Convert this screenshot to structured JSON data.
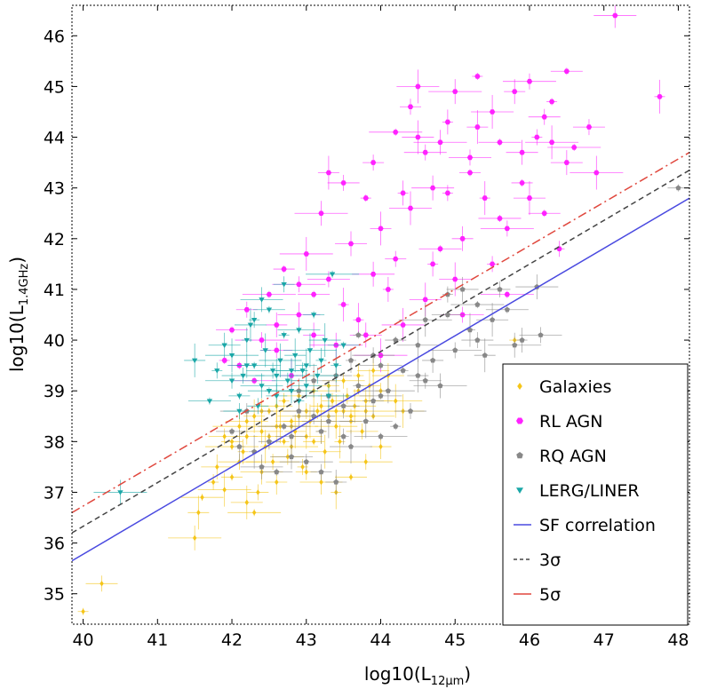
{
  "chart_data": {
    "type": "scatter",
    "xlabel": "log10(L",
    "xlabel_sub": "12μm",
    "xlabel_close": ")",
    "ylabel": "log10(L",
    "ylabel_sub": "1.4GHz",
    "ylabel_close": ")",
    "xlim": [
      39.85,
      48.15
    ],
    "ylim": [
      34.4,
      46.6
    ],
    "x_ticks": [
      40,
      41,
      42,
      43,
      44,
      45,
      46,
      47,
      48
    ],
    "y_ticks": [
      35,
      36,
      37,
      38,
      39,
      40,
      41,
      42,
      43,
      44,
      45,
      46
    ],
    "legend_position": "lower-right",
    "lines": [
      {
        "name": "SF correlation",
        "color": "#4a4ae0",
        "style": "solid",
        "x": [
          39.85,
          48.15
        ],
        "y": [
          35.65,
          42.8
        ]
      },
      {
        "name": "3σ",
        "color": "#444444",
        "style": "dashed",
        "x": [
          39.85,
          48.15
        ],
        "y": [
          36.2,
          43.35
        ]
      },
      {
        "name": "5σ",
        "color": "#e0473d",
        "style": "dashdot",
        "x": [
          39.85,
          48.15
        ],
        "y": [
          36.6,
          43.7
        ]
      }
    ],
    "series": [
      {
        "name": "Galaxies",
        "color": "#f5c518",
        "marker": "diamond",
        "points": [
          [
            40.0,
            34.65
          ],
          [
            40.25,
            35.2
          ],
          [
            41.5,
            36.1
          ],
          [
            41.55,
            36.6
          ],
          [
            41.6,
            36.9
          ],
          [
            41.75,
            37.2
          ],
          [
            41.8,
            37.5
          ],
          [
            41.9,
            37.05
          ],
          [
            42.0,
            37.3
          ],
          [
            42.1,
            37.6
          ],
          [
            42.15,
            37.8
          ],
          [
            42.2,
            36.8
          ],
          [
            42.3,
            36.6
          ],
          [
            42.35,
            37.0
          ],
          [
            42.4,
            37.4
          ],
          [
            42.45,
            37.9
          ],
          [
            42.5,
            38.1
          ],
          [
            42.55,
            37.6
          ],
          [
            42.6,
            37.2
          ],
          [
            42.65,
            38.3
          ],
          [
            42.7,
            38.0
          ],
          [
            42.75,
            37.7
          ],
          [
            42.8,
            37.9
          ],
          [
            42.85,
            38.2
          ],
          [
            42.9,
            38.5
          ],
          [
            42.95,
            37.5
          ],
          [
            43.0,
            38.1
          ],
          [
            43.05,
            38.4
          ],
          [
            43.1,
            38.0
          ],
          [
            43.15,
            38.6
          ],
          [
            43.2,
            38.2
          ],
          [
            43.25,
            37.8
          ],
          [
            43.3,
            38.5
          ],
          [
            43.35,
            38.8
          ],
          [
            43.4,
            38.3
          ],
          [
            43.45,
            38.0
          ],
          [
            43.5,
            38.6
          ],
          [
            43.55,
            38.9
          ],
          [
            43.6,
            38.4
          ],
          [
            43.65,
            38.7
          ],
          [
            43.7,
            39.0
          ],
          [
            43.75,
            38.2
          ],
          [
            43.8,
            38.8
          ],
          [
            43.85,
            39.1
          ],
          [
            43.9,
            38.5
          ],
          [
            44.0,
            39.0
          ],
          [
            44.1,
            39.3
          ],
          [
            44.2,
            38.8
          ],
          [
            42.0,
            38.0
          ],
          [
            42.2,
            38.4
          ],
          [
            42.4,
            38.6
          ],
          [
            42.6,
            38.7
          ],
          [
            42.8,
            38.3
          ],
          [
            43.0,
            37.4
          ],
          [
            43.2,
            37.2
          ],
          [
            43.4,
            37.0
          ],
          [
            43.6,
            37.3
          ],
          [
            43.8,
            37.6
          ],
          [
            44.0,
            37.9
          ],
          [
            44.3,
            38.6
          ],
          [
            45.8,
            40.0
          ],
          [
            41.9,
            38.1
          ],
          [
            42.1,
            38.3
          ],
          [
            42.3,
            38.5
          ],
          [
            42.5,
            38.6
          ],
          [
            42.7,
            38.8
          ],
          [
            42.9,
            38.9
          ],
          [
            43.1,
            39.0
          ],
          [
            43.3,
            39.1
          ],
          [
            43.5,
            39.2
          ],
          [
            43.7,
            39.3
          ],
          [
            43.9,
            39.4
          ],
          [
            42.0,
            37.9
          ],
          [
            42.2,
            38.1
          ],
          [
            42.4,
            38.2
          ],
          [
            42.6,
            38.3
          ],
          [
            42.8,
            38.4
          ],
          [
            43.0,
            38.6
          ],
          [
            43.2,
            38.7
          ],
          [
            43.4,
            38.6
          ],
          [
            43.6,
            38.5
          ],
          [
            43.8,
            38.6
          ]
        ]
      },
      {
        "name": "RL AGN",
        "color": "#ff22ff",
        "marker": "hexagon",
        "points": [
          [
            47.15,
            46.4
          ],
          [
            47.75,
            44.8
          ],
          [
            46.5,
            45.3
          ],
          [
            46.0,
            45.1
          ],
          [
            45.8,
            44.9
          ],
          [
            45.5,
            44.5
          ],
          [
            46.3,
            44.7
          ],
          [
            46.8,
            44.2
          ],
          [
            45.0,
            44.9
          ],
          [
            45.3,
            44.2
          ],
          [
            45.6,
            43.9
          ],
          [
            46.1,
            44.0
          ],
          [
            46.5,
            43.5
          ],
          [
            46.9,
            43.3
          ],
          [
            45.9,
            43.1
          ],
          [
            45.2,
            43.6
          ],
          [
            44.9,
            44.3
          ],
          [
            44.5,
            44.0
          ],
          [
            44.2,
            44.1
          ],
          [
            43.9,
            43.5
          ],
          [
            44.7,
            43.0
          ],
          [
            45.4,
            42.8
          ],
          [
            46.2,
            42.5
          ],
          [
            45.7,
            42.2
          ],
          [
            45.1,
            42.0
          ],
          [
            44.4,
            42.6
          ],
          [
            43.8,
            42.8
          ],
          [
            43.5,
            43.1
          ],
          [
            43.2,
            42.5
          ],
          [
            44.0,
            42.2
          ],
          [
            44.8,
            41.8
          ],
          [
            45.5,
            41.5
          ],
          [
            43.6,
            41.9
          ],
          [
            43.0,
            41.7
          ],
          [
            42.7,
            41.4
          ],
          [
            43.3,
            41.2
          ],
          [
            44.1,
            41.0
          ],
          [
            44.6,
            40.8
          ],
          [
            42.5,
            40.9
          ],
          [
            42.2,
            40.6
          ],
          [
            42.9,
            40.5
          ],
          [
            43.7,
            40.4
          ],
          [
            42.0,
            40.2
          ],
          [
            42.4,
            40.0
          ],
          [
            43.1,
            40.1
          ],
          [
            44.3,
            40.3
          ],
          [
            41.9,
            39.6
          ],
          [
            42.6,
            39.8
          ],
          [
            43.4,
            39.9
          ],
          [
            42.8,
            39.3
          ],
          [
            42.3,
            39.2
          ],
          [
            44.9,
            42.9
          ],
          [
            45.9,
            43.7
          ],
          [
            46.3,
            43.9
          ],
          [
            45.2,
            43.3
          ],
          [
            44.6,
            43.7
          ],
          [
            44.3,
            42.9
          ],
          [
            45.0,
            41.2
          ],
          [
            45.7,
            40.9
          ],
          [
            44.2,
            41.6
          ],
          [
            43.9,
            41.3
          ],
          [
            43.5,
            40.7
          ],
          [
            43.1,
            40.9
          ],
          [
            42.9,
            41.1
          ],
          [
            42.6,
            40.3
          ],
          [
            44.5,
            45.0
          ],
          [
            45.3,
            45.2
          ],
          [
            46.2,
            44.4
          ],
          [
            44.8,
            43.9
          ],
          [
            43.3,
            43.3
          ],
          [
            45.6,
            42.4
          ],
          [
            46.4,
            41.8
          ],
          [
            43.8,
            40.1
          ],
          [
            44.0,
            39.7
          ],
          [
            42.1,
            39.5
          ],
          [
            45.1,
            40.5
          ],
          [
            44.7,
            41.5
          ],
          [
            46.0,
            42.8
          ],
          [
            46.6,
            43.8
          ],
          [
            44.4,
            44.6
          ]
        ]
      },
      {
        "name": "RQ AGN",
        "color": "#888888",
        "marker": "pentagon",
        "points": [
          [
            48.0,
            43.0
          ],
          [
            46.15,
            40.1
          ],
          [
            45.9,
            40.0
          ],
          [
            45.5,
            40.4
          ],
          [
            45.3,
            40.7
          ],
          [
            45.6,
            41.0
          ],
          [
            46.1,
            41.05
          ],
          [
            45.2,
            40.2
          ],
          [
            44.9,
            40.5
          ],
          [
            45.0,
            39.8
          ],
          [
            44.7,
            39.6
          ],
          [
            44.5,
            39.9
          ],
          [
            44.3,
            39.4
          ],
          [
            44.6,
            39.2
          ],
          [
            44.1,
            39.0
          ],
          [
            43.9,
            38.8
          ],
          [
            44.0,
            39.5
          ],
          [
            43.7,
            39.1
          ],
          [
            43.5,
            38.7
          ],
          [
            43.8,
            38.4
          ],
          [
            43.3,
            38.9
          ],
          [
            43.1,
            38.5
          ],
          [
            43.2,
            38.2
          ],
          [
            42.9,
            38.6
          ],
          [
            42.7,
            38.3
          ],
          [
            42.5,
            38.0
          ],
          [
            42.8,
            37.7
          ],
          [
            42.3,
            37.8
          ],
          [
            42.6,
            37.4
          ],
          [
            43.0,
            37.6
          ],
          [
            43.4,
            37.2
          ],
          [
            43.6,
            37.9
          ],
          [
            44.2,
            38.3
          ],
          [
            44.4,
            38.6
          ],
          [
            44.8,
            39.1
          ],
          [
            45.4,
            39.7
          ],
          [
            45.7,
            40.6
          ],
          [
            44.9,
            40.9
          ],
          [
            45.1,
            41.0
          ],
          [
            44.6,
            40.4
          ],
          [
            44.2,
            40.0
          ],
          [
            43.9,
            39.7
          ],
          [
            43.6,
            39.6
          ],
          [
            43.4,
            39.3
          ],
          [
            44.0,
            38.1
          ],
          [
            43.2,
            37.4
          ],
          [
            42.4,
            37.5
          ],
          [
            42.1,
            37.9
          ],
          [
            42.0,
            38.2
          ],
          [
            42.2,
            38.6
          ],
          [
            42.9,
            39.0
          ],
          [
            43.1,
            39.2
          ],
          [
            43.7,
            40.1
          ],
          [
            45.3,
            40.0
          ],
          [
            45.8,
            39.9
          ],
          [
            44.5,
            39.3
          ],
          [
            44.0,
            38.9
          ],
          [
            43.5,
            38.1
          ],
          [
            42.8,
            38.1
          ],
          [
            43.3,
            38.4
          ]
        ]
      },
      {
        "name": "LERG/LINER",
        "color": "#1aa7a7",
        "marker": "triangle",
        "points": [
          [
            40.5,
            37.0
          ],
          [
            41.5,
            39.6
          ],
          [
            41.7,
            38.8
          ],
          [
            41.8,
            39.4
          ],
          [
            41.9,
            39.9
          ],
          [
            42.0,
            39.7
          ],
          [
            42.1,
            38.9
          ],
          [
            42.15,
            39.3
          ],
          [
            42.2,
            40.0
          ],
          [
            42.25,
            40.3
          ],
          [
            42.3,
            39.5
          ],
          [
            42.35,
            38.7
          ],
          [
            42.4,
            39.1
          ],
          [
            42.45,
            39.8
          ],
          [
            42.5,
            40.6
          ],
          [
            42.55,
            39.4
          ],
          [
            42.6,
            38.9
          ],
          [
            42.65,
            39.6
          ],
          [
            42.7,
            40.1
          ],
          [
            42.75,
            39.2
          ],
          [
            42.8,
            39.0
          ],
          [
            42.85,
            39.7
          ],
          [
            42.9,
            40.2
          ],
          [
            42.95,
            39.4
          ],
          [
            43.0,
            39.1
          ],
          [
            43.05,
            39.8
          ],
          [
            43.1,
            40.5
          ],
          [
            43.15,
            39.3
          ],
          [
            43.2,
            39.6
          ],
          [
            43.25,
            40.0
          ],
          [
            43.35,
            41.3
          ],
          [
            42.7,
            41.1
          ],
          [
            42.4,
            40.8
          ],
          [
            43.4,
            39.5
          ],
          [
            43.5,
            39.9
          ],
          [
            42.0,
            39.2
          ],
          [
            42.2,
            39.5
          ],
          [
            42.6,
            39.3
          ],
          [
            42.9,
            38.8
          ],
          [
            42.1,
            38.6
          ],
          [
            43.3,
            38.9
          ],
          [
            43.0,
            39.5
          ],
          [
            42.5,
            39.0
          ],
          [
            42.3,
            40.4
          ],
          [
            42.8,
            39.4
          ]
        ]
      }
    ],
    "legend": [
      "Galaxies",
      "RL AGN",
      "RQ AGN",
      "LERG/LINER",
      "SF correlation",
      "3σ",
      "5σ"
    ]
  }
}
